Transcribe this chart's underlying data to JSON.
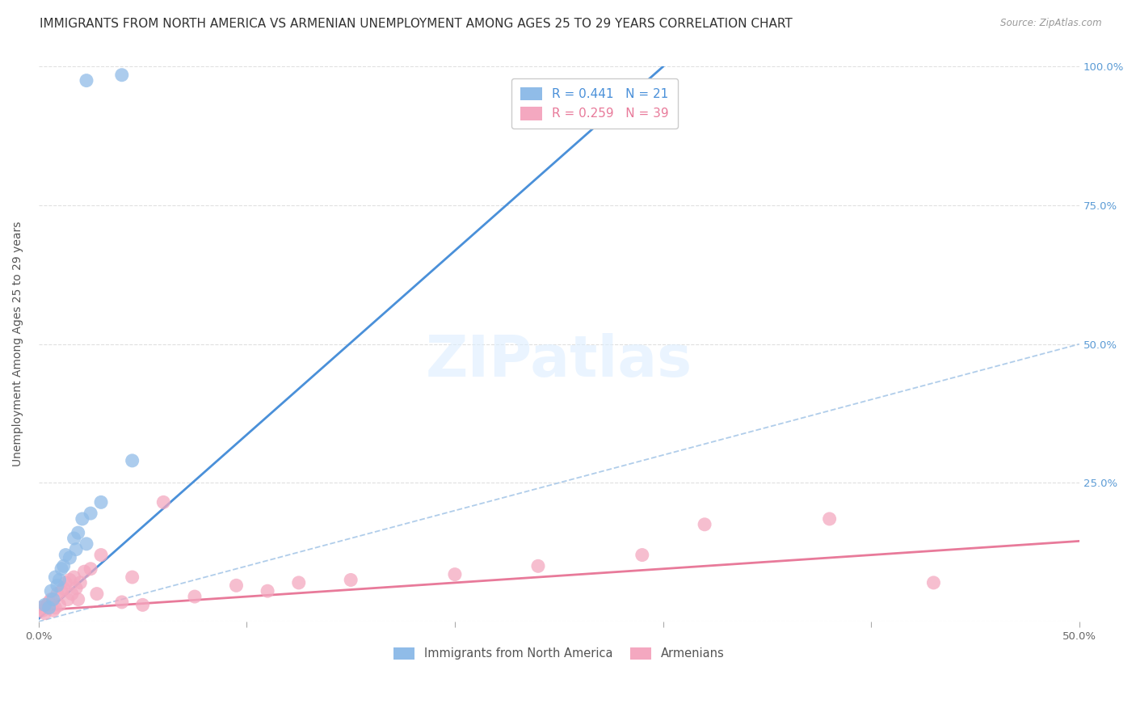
{
  "title": "IMMIGRANTS FROM NORTH AMERICA VS ARMENIAN UNEMPLOYMENT AMONG AGES 25 TO 29 YEARS CORRELATION CHART",
  "source": "Source: ZipAtlas.com",
  "ylabel": "Unemployment Among Ages 25 to 29 years",
  "xlim": [
    0.0,
    0.5
  ],
  "ylim": [
    0.0,
    1.0
  ],
  "xticks": [
    0.0,
    0.1,
    0.2,
    0.3,
    0.4,
    0.5
  ],
  "xticklabels": [
    "0.0%",
    "",
    "",
    "",
    "",
    "50.0%"
  ],
  "yticks_left": [
    0.0,
    0.25,
    0.5,
    0.75,
    1.0
  ],
  "yticklabels_left": [
    "",
    "",
    "",
    "",
    ""
  ],
  "yticks_right": [
    0.25,
    0.5,
    0.75,
    1.0
  ],
  "yticklabels_right": [
    "25.0%",
    "50.0%",
    "75.0%",
    "100.0%"
  ],
  "blue_color": "#90bce8",
  "pink_color": "#f4a8c0",
  "blue_line_color": "#4a90d9",
  "pink_line_color": "#e87a9a",
  "ref_line_color": "#a8c8e8",
  "legend_blue_r": "R = 0.441",
  "legend_blue_n": "N = 21",
  "legend_pink_r": "R = 0.259",
  "legend_pink_n": "N = 39",
  "blue_scatter_x": [
    0.003,
    0.005,
    0.006,
    0.007,
    0.008,
    0.009,
    0.01,
    0.011,
    0.012,
    0.013,
    0.015,
    0.017,
    0.018,
    0.019,
    0.021,
    0.023,
    0.025,
    0.03,
    0.045,
    0.023,
    0.04
  ],
  "blue_scatter_y": [
    0.03,
    0.025,
    0.055,
    0.04,
    0.08,
    0.065,
    0.075,
    0.095,
    0.1,
    0.12,
    0.115,
    0.15,
    0.13,
    0.16,
    0.185,
    0.14,
    0.195,
    0.215,
    0.29,
    0.975,
    0.985
  ],
  "pink_scatter_x": [
    0.001,
    0.002,
    0.003,
    0.004,
    0.005,
    0.006,
    0.007,
    0.008,
    0.009,
    0.01,
    0.011,
    0.012,
    0.013,
    0.014,
    0.015,
    0.016,
    0.017,
    0.018,
    0.019,
    0.02,
    0.022,
    0.025,
    0.028,
    0.03,
    0.04,
    0.045,
    0.05,
    0.06,
    0.075,
    0.095,
    0.11,
    0.125,
    0.15,
    0.2,
    0.24,
    0.29,
    0.32,
    0.38,
    0.43
  ],
  "pink_scatter_y": [
    0.025,
    0.02,
    0.015,
    0.03,
    0.035,
    0.04,
    0.02,
    0.025,
    0.05,
    0.03,
    0.055,
    0.06,
    0.07,
    0.04,
    0.075,
    0.05,
    0.08,
    0.06,
    0.04,
    0.07,
    0.09,
    0.095,
    0.05,
    0.12,
    0.035,
    0.08,
    0.03,
    0.215,
    0.045,
    0.065,
    0.055,
    0.07,
    0.075,
    0.085,
    0.1,
    0.12,
    0.175,
    0.185,
    0.07
  ],
  "blue_line_x": [
    0.0,
    0.3
  ],
  "blue_line_y": [
    0.005,
    1.0
  ],
  "pink_line_x": [
    0.0,
    0.5
  ],
  "pink_line_y": [
    0.02,
    0.145
  ],
  "ref_line_x": [
    0.0,
    0.5
  ],
  "ref_line_y": [
    0.0,
    0.5
  ],
  "background_color": "#ffffff",
  "grid_color": "#e0e0e0",
  "title_fontsize": 11,
  "axis_fontsize": 10,
  "tick_fontsize": 9.5
}
